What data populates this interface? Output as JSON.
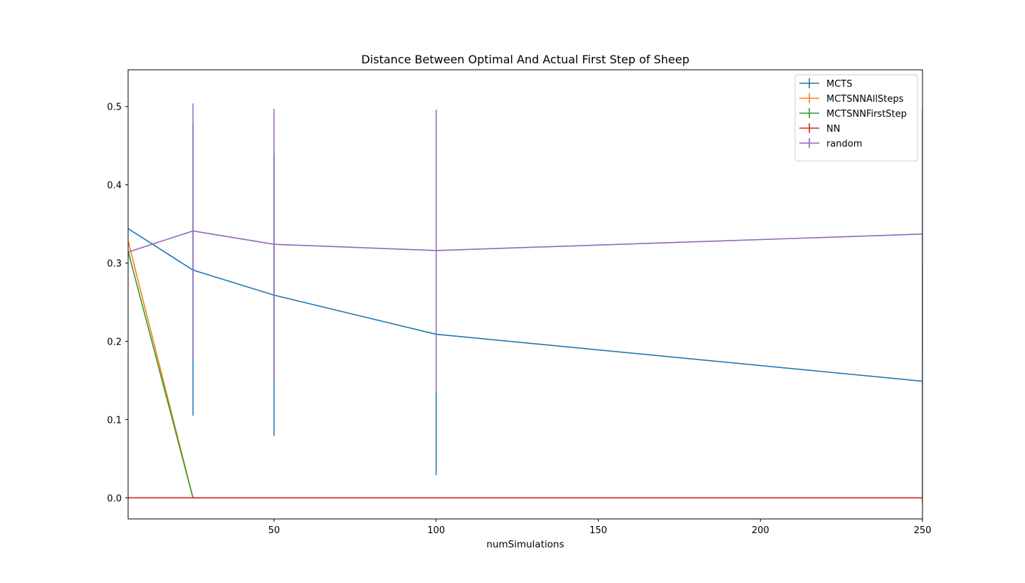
{
  "chart_data": {
    "type": "line",
    "title": "Distance Between Optimal And Actual First Step of Sheep",
    "xlabel": "numSimulations",
    "ylabel": "",
    "xlim": [
      5,
      250
    ],
    "ylim": [
      -0.027,
      0.547
    ],
    "x_ticks": [
      50,
      100,
      150,
      200,
      250
    ],
    "y_ticks": [
      0.0,
      0.1,
      0.2,
      0.3,
      0.4,
      0.5
    ],
    "x_tick_labels": [
      "50",
      "100",
      "150",
      "200",
      "250"
    ],
    "y_tick_labels": [
      "0.0",
      "0.1",
      "0.2",
      "0.3",
      "0.4",
      "0.5"
    ],
    "grid": false,
    "legend_position": "top-right",
    "x": [
      5,
      25,
      50,
      100,
      250
    ],
    "series": [
      {
        "name": "MCTS",
        "color": "#1f77b4",
        "values": [
          0.344,
          0.291,
          0.259,
          0.209,
          0.149
        ],
        "errors": [
          0.0,
          0.186,
          0.18,
          0.18,
          0.155
        ]
      },
      {
        "name": "MCTSNNAllSteps",
        "color": "#ff7f0e",
        "values": [
          0.328,
          0.0,
          0.0,
          0.0,
          0.0
        ],
        "errors": [
          0.0,
          0.0,
          0.0,
          0.0,
          0.0
        ]
      },
      {
        "name": "MCTSNNFirstStep",
        "color": "#2ca02c",
        "values": [
          0.315,
          0.0,
          0.0,
          0.0,
          0.0
        ],
        "errors": [
          0.0,
          0.0,
          0.0,
          0.0,
          0.0
        ]
      },
      {
        "name": "NN",
        "color": "#d62728",
        "values": [
          0.0,
          0.0,
          0.0,
          0.0,
          0.0
        ],
        "errors": [
          0.0,
          0.0,
          0.0,
          0.0,
          0.0
        ]
      },
      {
        "name": "random",
        "color": "#9467bd",
        "values": [
          0.314,
          0.341,
          0.324,
          0.316,
          0.337
        ],
        "errors": [
          0.0,
          0.163,
          0.173,
          0.18,
          0.16
        ]
      }
    ]
  }
}
